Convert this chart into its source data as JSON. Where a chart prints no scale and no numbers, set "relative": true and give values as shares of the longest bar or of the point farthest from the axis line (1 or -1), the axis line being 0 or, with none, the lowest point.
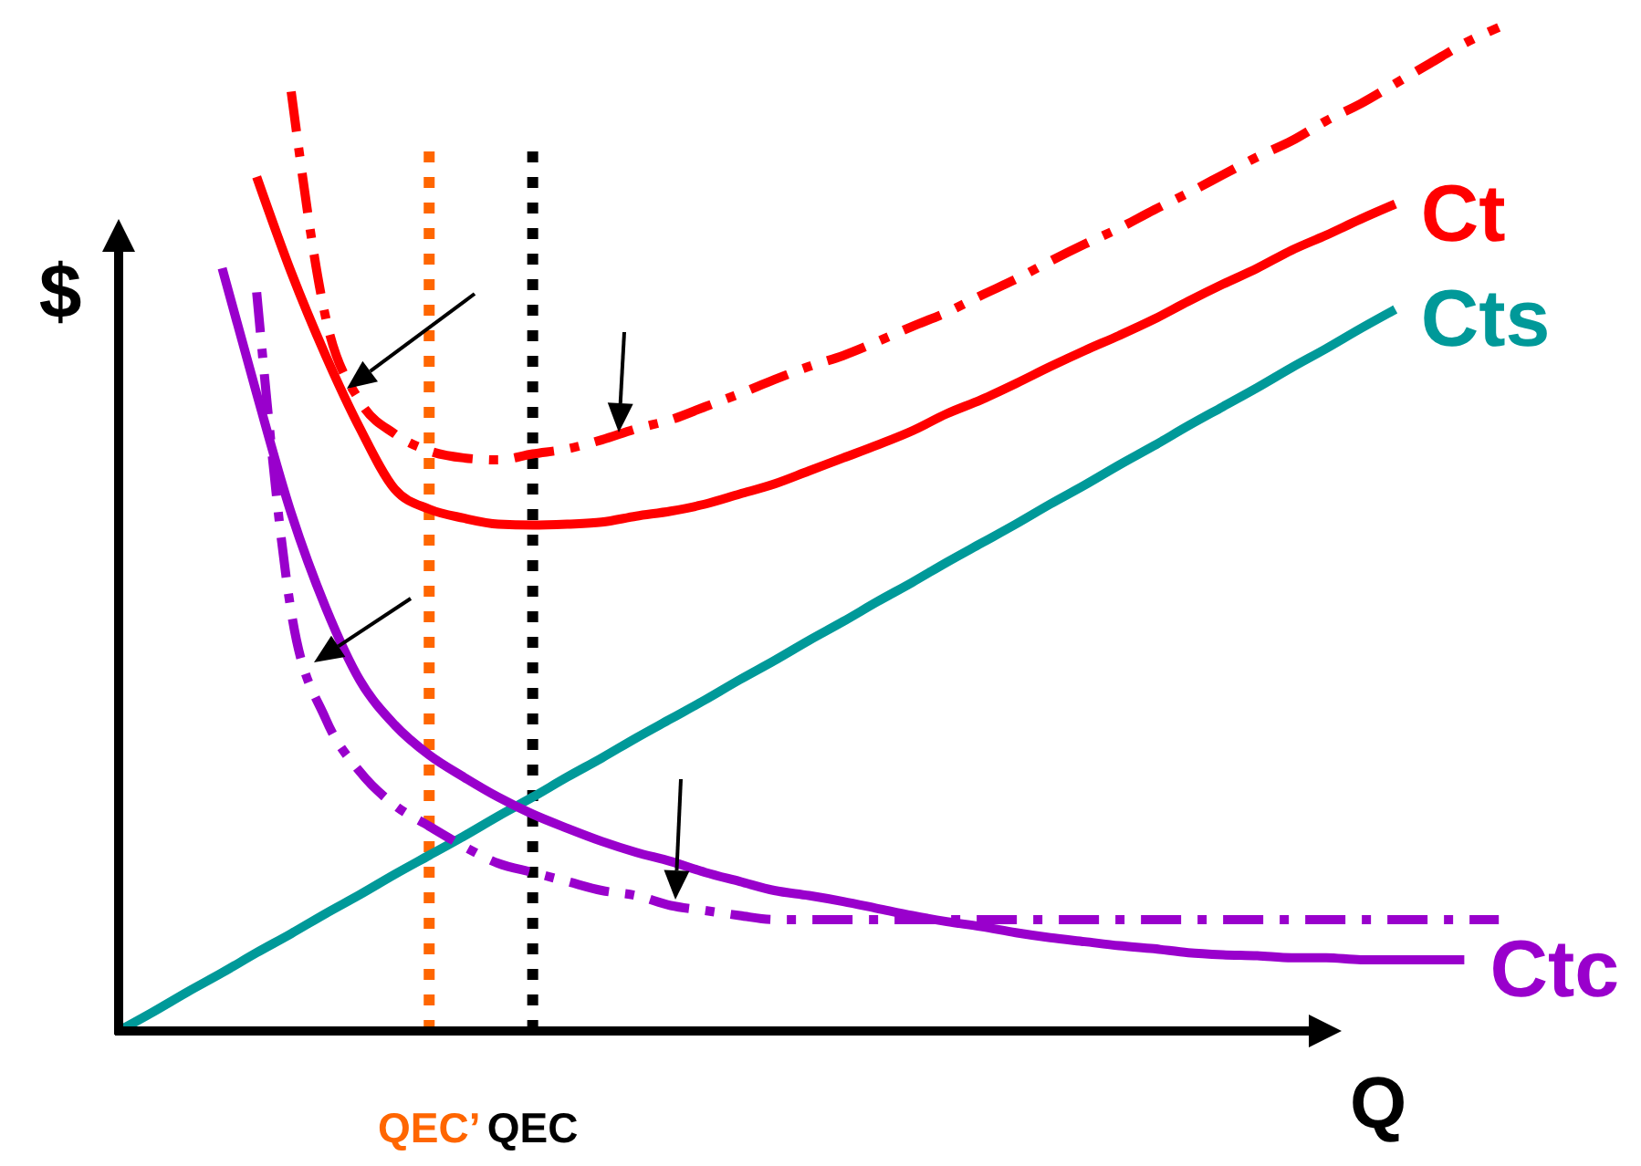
{
  "chart_data": {
    "type": "line",
    "relative": true,
    "xlabel": "Q",
    "ylabel": "$",
    "line_style": "solid",
    "categories": [
      null,
      null,
      null,
      null,
      null,
      null,
      null,
      null,
      null,
      "QEC’",
      null,
      null,
      "QEC",
      null,
      null,
      null,
      null,
      null,
      null,
      null,
      null,
      null,
      null,
      null,
      null,
      null,
      null,
      null,
      null,
      null,
      null,
      null,
      null,
      null,
      null,
      null,
      null,
      null,
      null,
      null,
      null,
      null
    ],
    "series": [
      {
        "name": "Ct",
        "color": "#ff0000",
        "values": [
          null,
          null,
          null,
          null,
          0.851,
          0.756,
          0.673,
          0.6,
          0.54,
          0.52,
          0.511,
          0.505,
          0.504,
          0.505,
          0.507,
          0.513,
          0.518,
          0.525,
          0.535,
          0.545,
          0.558,
          0.571,
          0.584,
          0.598,
          0.615,
          0.629,
          0.645,
          0.662,
          0.678,
          0.693,
          0.709,
          0.727,
          0.744,
          0.76,
          0.778,
          0.793,
          0.809,
          0.824,
          null,
          null,
          null,
          null
        ]
      },
      {
        "color": "#ff0000",
        "line_style": "dashed",
        "values": [
          null,
          null,
          null,
          null,
          null,
          0.936,
          0.711,
          0.627,
          0.595,
          0.578,
          0.571,
          0.569,
          0.575,
          0.58,
          0.589,
          0.6,
          0.609,
          0.622,
          0.635,
          0.649,
          0.662,
          0.673,
          0.687,
          0.702,
          0.716,
          0.733,
          0.749,
          0.767,
          0.784,
          0.8,
          0.818,
          0.835,
          0.853,
          0.871,
          0.887,
          0.907,
          0.924,
          0.944,
          0.964,
          0.984,
          1,
          null
        ]
      },
      {
        "name": "Cts",
        "color": "#009999",
        "values": [
          0,
          0.019,
          0.039,
          0.058,
          0.078,
          0.097,
          0.117,
          0.136,
          0.156,
          0.175,
          0.194,
          0.214,
          0.233,
          0.253,
          0.272,
          0.292,
          0.311,
          0.33,
          0.35,
          0.369,
          0.389,
          0.408,
          0.428,
          0.447,
          0.467,
          0.486,
          0.505,
          0.525,
          0.544,
          0.564,
          0.583,
          0.603,
          0.622,
          0.641,
          0.661,
          0.68,
          0.7,
          0.719,
          null,
          null,
          null,
          null
        ]
      },
      {
        "name": "Ctc",
        "color": "#9900cc",
        "values": [
          null,
          null,
          null,
          0.76,
          0.635,
          0.516,
          0.422,
          0.349,
          0.305,
          0.275,
          0.253,
          0.233,
          0.216,
          0.202,
          0.189,
          0.178,
          0.169,
          0.158,
          0.149,
          0.14,
          0.135,
          0.129,
          0.122,
          0.115,
          0.109,
          0.104,
          0.098,
          0.093,
          0.089,
          0.085,
          0.082,
          0.078,
          0.076,
          0.075,
          0.073,
          0.073,
          0.071,
          0.071,
          0.071,
          0.071,
          null,
          null
        ]
      },
      {
        "color": "#9900cc",
        "line_style": "dashed",
        "values": [
          null,
          null,
          null,
          null,
          0.736,
          0.418,
          0.311,
          0.258,
          0.225,
          0.204,
          0.184,
          0.167,
          0.158,
          0.149,
          0.14,
          0.135,
          0.125,
          0.12,
          0.115,
          0.111,
          0.111,
          0.111,
          0.111,
          0.111,
          0.111,
          0.111,
          0.111,
          0.111,
          0.111,
          0.111,
          0.111,
          0.111,
          0.111,
          0.111,
          0.111,
          0.111,
          0.111,
          0.111,
          0.111,
          0.111,
          0.111,
          null
        ]
      }
    ],
    "ref_lines": [
      {
        "axis": "x",
        "value": "QEC’",
        "color": "#ff6600",
        "line_style": "dotted"
      },
      {
        "axis": "x",
        "value": "QEC",
        "color": "#000000",
        "line_style": "dotted"
      }
    ]
  }
}
